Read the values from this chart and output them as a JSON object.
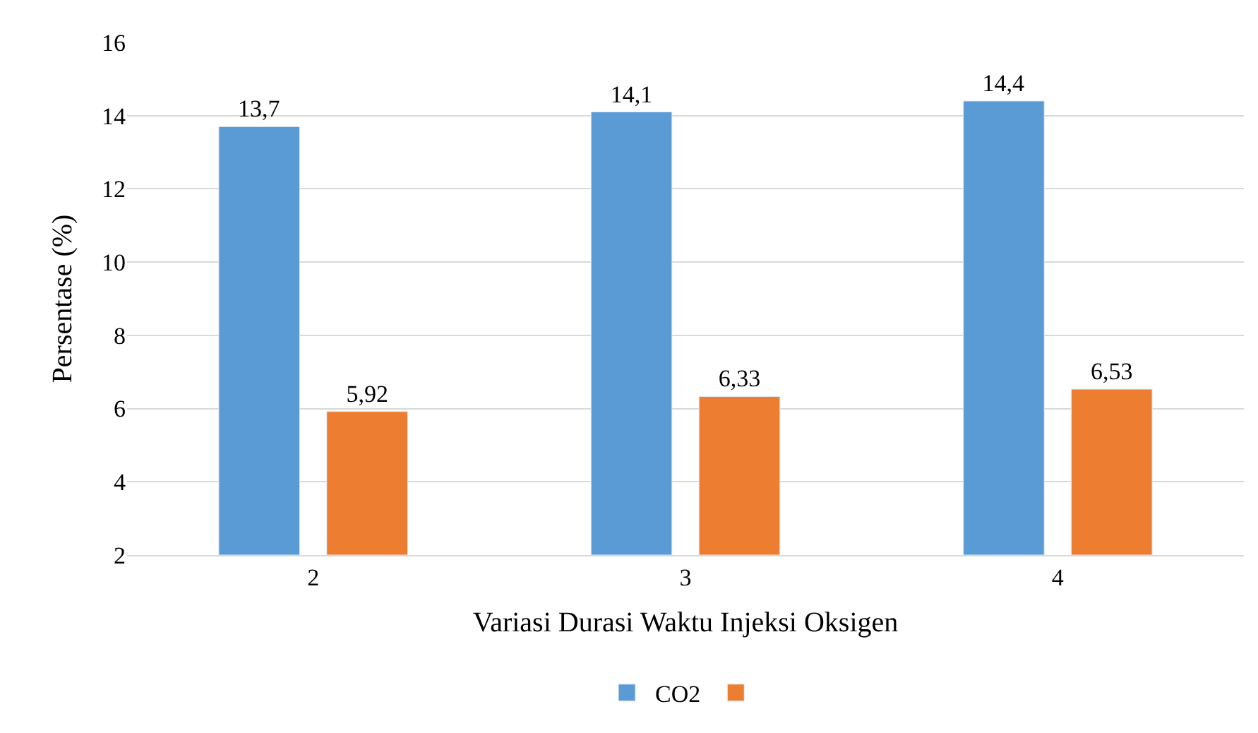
{
  "chart_data": {
    "type": "bar",
    "xlabel": "Variasi Durasi Waktu Injeksi Oksigen",
    "ylabel": "Persentase (%)",
    "categories": [
      "2",
      "3",
      "4"
    ],
    "series": [
      {
        "name": "CO2",
        "color": "#5b9bd5",
        "values": [
          13.7,
          14.1,
          14.4
        ],
        "value_labels": [
          "13,7",
          "14,1",
          "14,4"
        ]
      },
      {
        "color": "#ed7d31",
        "values": [
          5.92,
          6.33,
          6.53
        ],
        "value_labels": [
          "5,92",
          "6,33",
          "6,53"
        ]
      }
    ],
    "ylim": [
      2,
      16
    ],
    "yticks": [
      2,
      4,
      6,
      8,
      10,
      12,
      14,
      16
    ],
    "grid": "y",
    "legend": "bottom"
  }
}
